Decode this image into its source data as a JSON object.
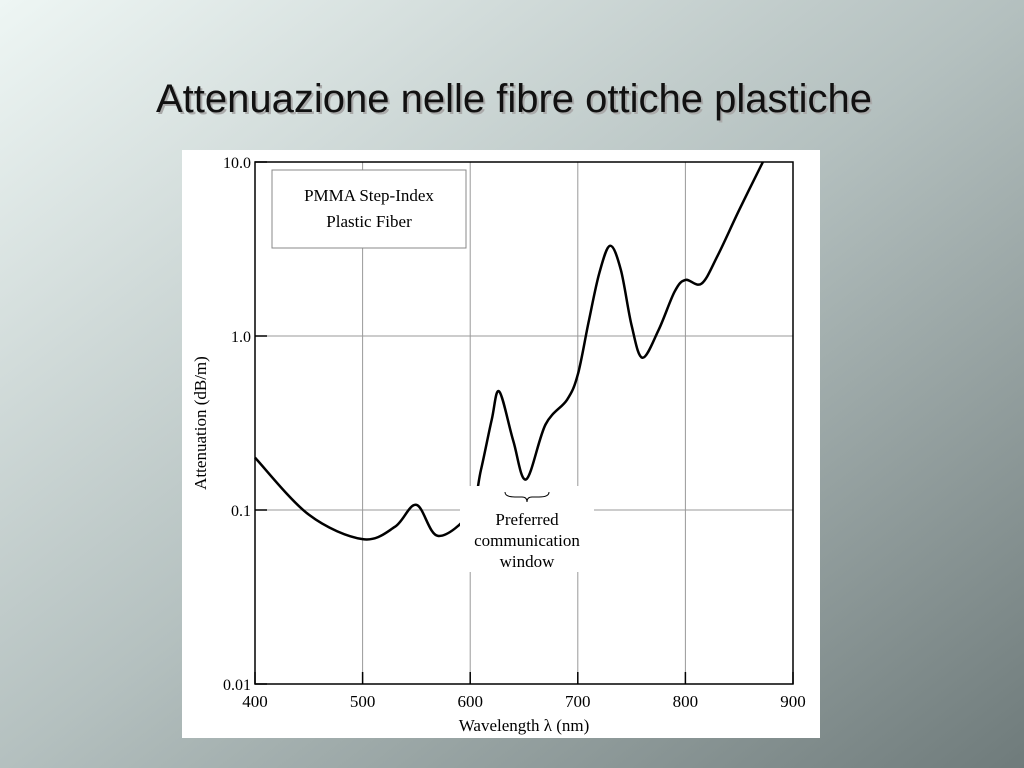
{
  "chart_data": {
    "type": "line",
    "title": "Attenuazione nelle fibre ottiche plastiche",
    "xlabel": "Wavelength λ (nm)",
    "ylabel": "Attenuation (dB/m)",
    "legend_box": [
      "PMMA Step-Index",
      "Plastic Fiber"
    ],
    "annotation": [
      "Preferred",
      "communication",
      "window"
    ],
    "xlim": [
      400,
      900
    ],
    "xticks": [
      400,
      500,
      600,
      700,
      800,
      900
    ],
    "ylim": [
      0.01,
      10
    ],
    "log_y": true,
    "yticks": [
      0.01,
      0.1,
      {
        "value": 1,
        "label": "1.0"
      },
      {
        "value": 10,
        "label": "10.0"
      }
    ],
    "grid": true,
    "color": "#000000",
    "x": [
      400,
      450,
      500,
      530,
      550,
      570,
      600,
      610,
      620,
      627,
      640,
      652,
      670,
      690,
      700,
      710,
      720,
      730,
      740,
      750,
      760,
      775,
      790,
      800,
      815,
      830,
      850,
      872
    ],
    "values": [
      0.2,
      0.094,
      0.068,
      0.08,
      0.107,
      0.071,
      0.097,
      0.17,
      0.33,
      0.48,
      0.25,
      0.15,
      0.31,
      0.43,
      0.6,
      1.2,
      2.3,
      3.3,
      2.4,
      1.15,
      0.75,
      1.08,
      1.8,
      2.1,
      2.0,
      2.9,
      5.3,
      10
    ]
  }
}
